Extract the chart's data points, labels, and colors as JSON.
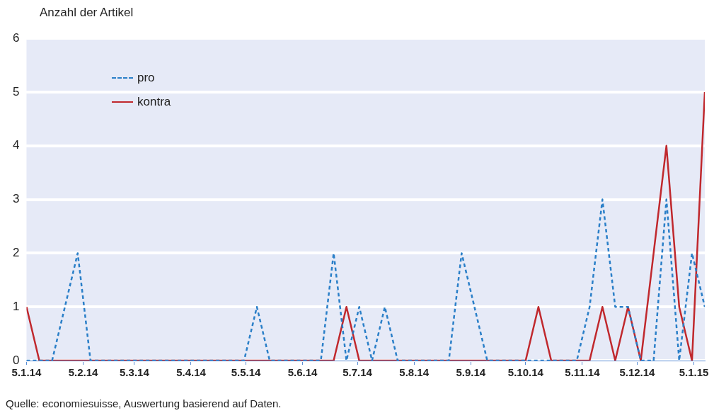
{
  "chart_data": {
    "type": "line",
    "ylabel": "Anzahl der Artikel",
    "x": [
      "2014-01-05",
      "2014-01-12",
      "2014-01-19",
      "2014-01-26",
      "2014-02-02",
      "2014-02-09",
      "2014-02-16",
      "2014-02-23",
      "2014-03-02",
      "2014-03-09",
      "2014-03-16",
      "2014-03-23",
      "2014-03-30",
      "2014-04-06",
      "2014-04-13",
      "2014-04-20",
      "2014-04-27",
      "2014-05-04",
      "2014-05-11",
      "2014-05-18",
      "2014-05-25",
      "2014-06-01",
      "2014-06-08",
      "2014-06-15",
      "2014-06-22",
      "2014-06-29",
      "2014-07-06",
      "2014-07-13",
      "2014-07-20",
      "2014-07-27",
      "2014-08-03",
      "2014-08-10",
      "2014-08-17",
      "2014-08-24",
      "2014-08-31",
      "2014-09-07",
      "2014-09-14",
      "2014-09-21",
      "2014-09-28",
      "2014-10-05",
      "2014-10-12",
      "2014-10-19",
      "2014-10-26",
      "2014-11-02",
      "2014-11-09",
      "2014-11-16",
      "2014-11-23",
      "2014-11-30",
      "2014-12-07",
      "2014-12-14",
      "2014-12-21",
      "2014-12-28",
      "2015-01-04",
      "2015-01-11"
    ],
    "series": [
      {
        "name": "pro",
        "color": "#2a7fc8",
        "line_style": "dashed",
        "values": [
          0,
          0,
          0,
          1,
          2,
          0,
          0,
          0,
          0,
          0,
          0,
          0,
          0,
          0,
          0,
          0,
          0,
          0,
          1,
          0,
          0,
          0,
          0,
          0,
          2,
          0,
          1,
          0,
          1,
          0,
          0,
          0,
          0,
          0,
          2,
          1,
          0,
          0,
          0,
          0,
          0,
          0,
          0,
          0,
          1,
          3,
          1,
          1,
          0,
          0,
          3,
          0,
          2,
          1
        ]
      },
      {
        "name": "kontra",
        "color": "#c0282d",
        "line_style": "solid",
        "values": [
          1,
          0,
          0,
          0,
          0,
          0,
          0,
          0,
          0,
          0,
          0,
          0,
          0,
          0,
          0,
          0,
          0,
          0,
          0,
          0,
          0,
          0,
          0,
          0,
          0,
          1,
          0,
          0,
          0,
          0,
          0,
          0,
          0,
          0,
          0,
          0,
          0,
          0,
          0,
          0,
          1,
          0,
          0,
          0,
          0,
          1,
          0,
          1,
          0,
          2,
          4,
          1,
          0,
          5
        ]
      }
    ],
    "xlim": [
      "2014-01-05",
      "2015-01-11"
    ],
    "xticks": [
      {
        "value": "2014-01-05",
        "label": "5.1.14"
      },
      {
        "value": "2014-02-05",
        "label": "5.2.14"
      },
      {
        "value": "2014-03-05",
        "label": "5.3.14"
      },
      {
        "value": "2014-04-05",
        "label": "5.4.14"
      },
      {
        "value": "2014-05-05",
        "label": "5.5.14"
      },
      {
        "value": "2014-06-05",
        "label": "5.6.14"
      },
      {
        "value": "2014-07-05",
        "label": "5.7.14"
      },
      {
        "value": "2014-08-05",
        "label": "5.8.14"
      },
      {
        "value": "2014-09-05",
        "label": "5.9.14"
      },
      {
        "value": "2014-10-05",
        "label": "5.10.14"
      },
      {
        "value": "2014-11-05",
        "label": "5.11.14"
      },
      {
        "value": "2014-12-05",
        "label": "5.12.14"
      },
      {
        "value": "2015-01-05",
        "label": "5.1.15"
      }
    ],
    "ylim": [
      0,
      6
    ],
    "yticks": [
      0,
      1,
      2,
      3,
      4,
      5,
      6
    ],
    "grid": "y",
    "legend": "top left",
    "marker": "none",
    "annotations": [
      "Quelle: economiesuisse, Auswertung basierend auf Daten."
    ]
  }
}
